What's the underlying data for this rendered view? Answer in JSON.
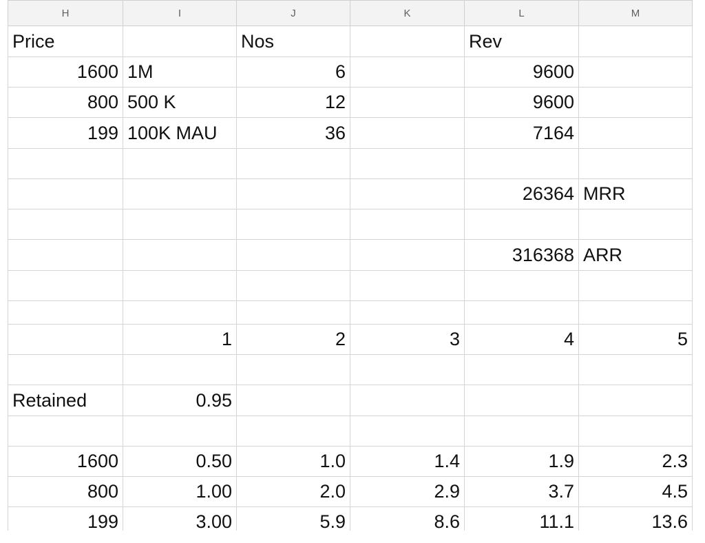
{
  "columns": [
    "H",
    "I",
    "J",
    "K",
    "L",
    "M"
  ],
  "rows": [
    [
      "Price",
      "",
      "Nos",
      "",
      "Rev",
      ""
    ],
    [
      "1600",
      "1M",
      "6",
      "",
      "9600",
      ""
    ],
    [
      "800",
      "500 K",
      "12",
      "",
      "9600",
      ""
    ],
    [
      "199",
      "100K MAU",
      "36",
      "",
      "7164",
      ""
    ],
    [
      "",
      "",
      "",
      "",
      "",
      ""
    ],
    [
      "",
      "",
      "",
      "",
      "26364",
      "MRR"
    ],
    [
      "",
      "",
      "",
      "",
      "",
      ""
    ],
    [
      "",
      "",
      "",
      "",
      "316368",
      "ARR"
    ],
    [
      "",
      "",
      "",
      "",
      "",
      ""
    ],
    [
      "",
      "",
      "",
      "",
      "",
      ""
    ],
    [
      "",
      "1",
      "2",
      "3",
      "4",
      "5"
    ],
    [
      "",
      "",
      "",
      "",
      "",
      ""
    ],
    [
      "Retained",
      "0.95",
      "",
      "",
      "",
      ""
    ],
    [
      "",
      "",
      "",
      "",
      "",
      ""
    ],
    [
      "1600",
      "0.50",
      "1.0",
      "1.4",
      "1.9",
      "2.3"
    ],
    [
      "800",
      "1.00",
      "2.0",
      "2.9",
      "3.7",
      "4.5"
    ],
    [
      "199",
      "3.00",
      "5.9",
      "8.6",
      "11.1",
      "13.6"
    ]
  ]
}
